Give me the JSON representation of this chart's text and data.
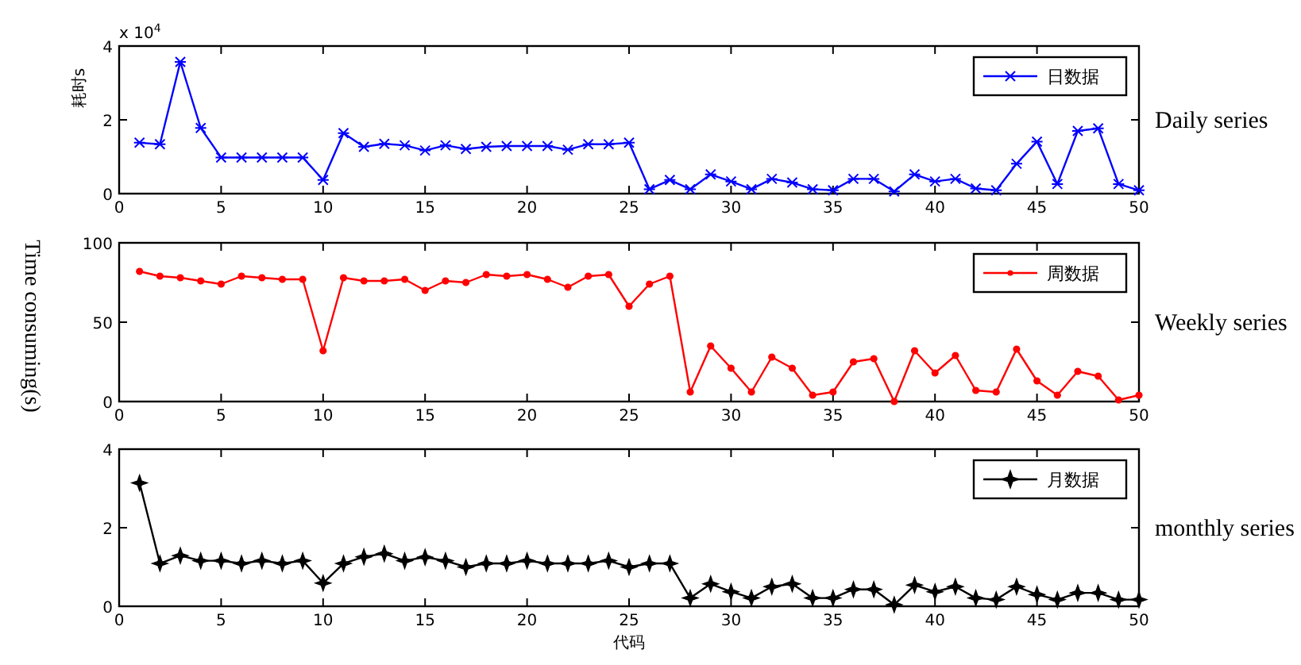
{
  "chart_data": [
    {
      "type": "line",
      "ylabel": "耗时s",
      "annotations": [
        "x 10$^{4}$",
        "Daily series"
      ],
      "x": [
        1,
        2,
        3,
        4,
        5,
        6,
        7,
        8,
        9,
        10,
        11,
        12,
        13,
        14,
        15,
        16,
        17,
        18,
        19,
        20,
        21,
        22,
        23,
        24,
        25,
        26,
        27,
        28,
        29,
        30,
        31,
        32,
        33,
        34,
        35,
        36,
        37,
        38,
        39,
        40,
        41,
        42,
        43,
        44,
        45,
        46,
        47,
        48,
        49,
        50
      ],
      "xlim": [
        0,
        50
      ],
      "xticks": [
        0,
        5,
        10,
        15,
        20,
        25,
        30,
        35,
        40,
        45,
        50
      ],
      "ylim": [
        0,
        4
      ],
      "yticks": [
        0,
        2,
        4
      ],
      "marker": "cross",
      "line_style": "solid",
      "legend": "top right",
      "series": [
        {
          "name": "日数据",
          "color": "#0000ff",
          "values": [
            1.38,
            1.34,
            3.57,
            1.78,
            0.98,
            0.98,
            0.98,
            0.98,
            0.98,
            0.37,
            1.64,
            1.27,
            1.35,
            1.31,
            1.17,
            1.31,
            1.21,
            1.27,
            1.29,
            1.29,
            1.29,
            1.19,
            1.34,
            1.34,
            1.38,
            0.12,
            0.37,
            0.12,
            0.52,
            0.33,
            0.12,
            0.4,
            0.3,
            0.12,
            0.09,
            0.4,
            0.4,
            0.06,
            0.52,
            0.33,
            0.4,
            0.14,
            0.09,
            0.81,
            1.41,
            0.26,
            1.7,
            1.77,
            0.26,
            0.09
          ]
        }
      ]
    },
    {
      "type": "line",
      "ylabel": "Time consuming(s)",
      "annotations": [
        "Weekly series"
      ],
      "x": [
        1,
        2,
        3,
        4,
        5,
        6,
        7,
        8,
        9,
        10,
        11,
        12,
        13,
        14,
        15,
        16,
        17,
        18,
        19,
        20,
        21,
        22,
        23,
        24,
        25,
        26,
        27,
        28,
        29,
        30,
        31,
        32,
        33,
        34,
        35,
        36,
        37,
        38,
        39,
        40,
        41,
        42,
        43,
        44,
        45,
        46,
        47,
        48,
        49,
        50
      ],
      "xlim": [
        0,
        50
      ],
      "xticks": [
        0,
        5,
        10,
        15,
        20,
        25,
        30,
        35,
        40,
        45,
        50
      ],
      "ylim": [
        0,
        100
      ],
      "yticks": [
        0,
        50,
        100
      ],
      "marker": "circle",
      "line_style": "solid",
      "legend": "top right",
      "series": [
        {
          "name": "周数据",
          "color": "#ff0000",
          "values": [
            82,
            79,
            78,
            76,
            74,
            79,
            78,
            77,
            77,
            32,
            78,
            76,
            76,
            77,
            70,
            76,
            75,
            80,
            79,
            80,
            77,
            72,
            79,
            80,
            60,
            74,
            79,
            6,
            35,
            21,
            6,
            28,
            21,
            4,
            6,
            25,
            27,
            0,
            32,
            18,
            29,
            7,
            6,
            33,
            13,
            4,
            19,
            16,
            1,
            4
          ]
        }
      ]
    },
    {
      "type": "line",
      "xlabel": "代码",
      "annotations": [
        "monthly series"
      ],
      "x": [
        1,
        2,
        3,
        4,
        5,
        6,
        7,
        8,
        9,
        10,
        11,
        12,
        13,
        14,
        15,
        16,
        17,
        18,
        19,
        20,
        21,
        22,
        23,
        24,
        25,
        26,
        27,
        28,
        29,
        30,
        31,
        32,
        33,
        34,
        35,
        36,
        37,
        38,
        39,
        40,
        41,
        42,
        43,
        44,
        45,
        46,
        47,
        48,
        49,
        50
      ],
      "xlim": [
        0,
        50
      ],
      "xticks": [
        0,
        5,
        10,
        15,
        20,
        25,
        30,
        35,
        40,
        45,
        50
      ],
      "ylim": [
        0,
        4
      ],
      "yticks": [
        0,
        2,
        4
      ],
      "marker": "star",
      "line_style": "solid",
      "legend": "top right",
      "series": [
        {
          "name": "月数据",
          "color": "#000000",
          "values": [
            3.14,
            1.09,
            1.29,
            1.16,
            1.16,
            1.09,
            1.16,
            1.09,
            1.16,
            0.59,
            1.09,
            1.26,
            1.34,
            1.16,
            1.25,
            1.16,
            1.0,
            1.09,
            1.09,
            1.16,
            1.09,
            1.09,
            1.09,
            1.16,
            1.0,
            1.09,
            1.09,
            0.21,
            0.57,
            0.37,
            0.21,
            0.5,
            0.57,
            0.21,
            0.21,
            0.43,
            0.43,
            0.04,
            0.54,
            0.37,
            0.5,
            0.21,
            0.17,
            0.5,
            0.3,
            0.17,
            0.34,
            0.34,
            0.17,
            0.17
          ]
        }
      ]
    }
  ]
}
